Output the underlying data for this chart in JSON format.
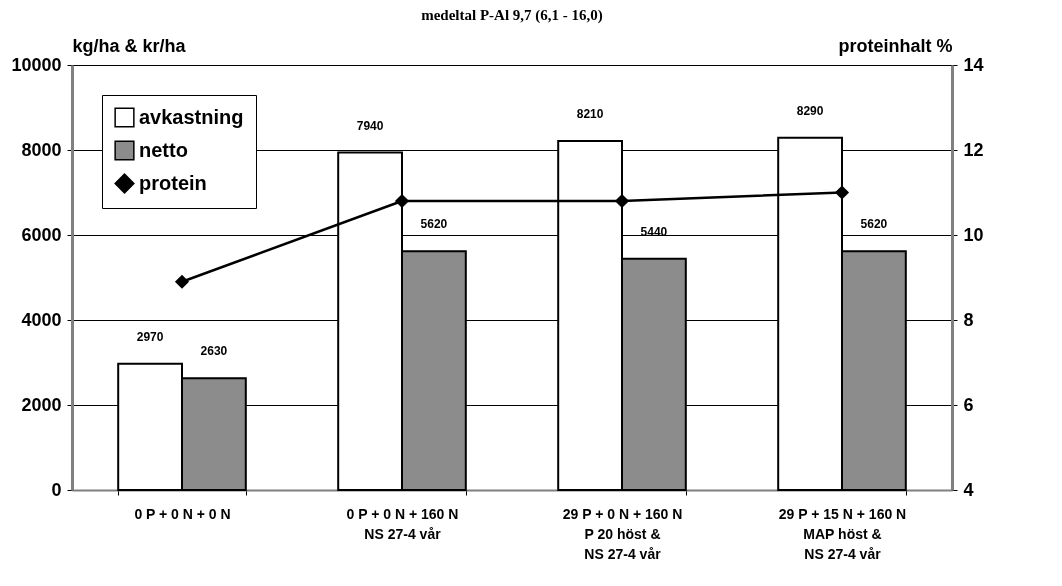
{
  "chart_data": {
    "type": "bar",
    "title": "medeltal P-Al 9,7  (6,1 - 16,0)",
    "ylabel": "kg/ha & kr/ha",
    "y2label": "proteinhalt %",
    "categories": [
      "0 P + 0 N + 0 N",
      "0 P + 0 N + 160 N\nNS 27-4 vår",
      "29 P + 0 N + 160 N\nP 20 höst &\nNS 27-4 vår",
      "29 P + 15 N + 160 N\nMAP höst &\nNS 27-4 vår"
    ],
    "series": [
      {
        "name": "avkastning",
        "color": "#ffffff",
        "values": [
          2970,
          7940,
          8210,
          8290
        ],
        "value_labels": [
          "2970",
          "7940",
          "8210",
          "8290"
        ]
      },
      {
        "name": "netto",
        "color": "#8c8c8c",
        "values": [
          2630,
          5620,
          5440,
          5620
        ],
        "value_labels": [
          "2630",
          "5620",
          "5440",
          "5620"
        ]
      },
      {
        "name": "protein",
        "type": "line",
        "axis": "y2",
        "color": "#000000",
        "marker": "diamond",
        "values": [
          8.9,
          10.8,
          10.8,
          11.0
        ]
      }
    ],
    "ylim": [
      0,
      10000
    ],
    "yticks": [
      0,
      2000,
      4000,
      6000,
      8000,
      10000
    ],
    "y2lim": [
      4,
      14
    ],
    "y2ticks": [
      4,
      6,
      8,
      10,
      12,
      14
    ],
    "grid": "y",
    "legend": "top left"
  }
}
